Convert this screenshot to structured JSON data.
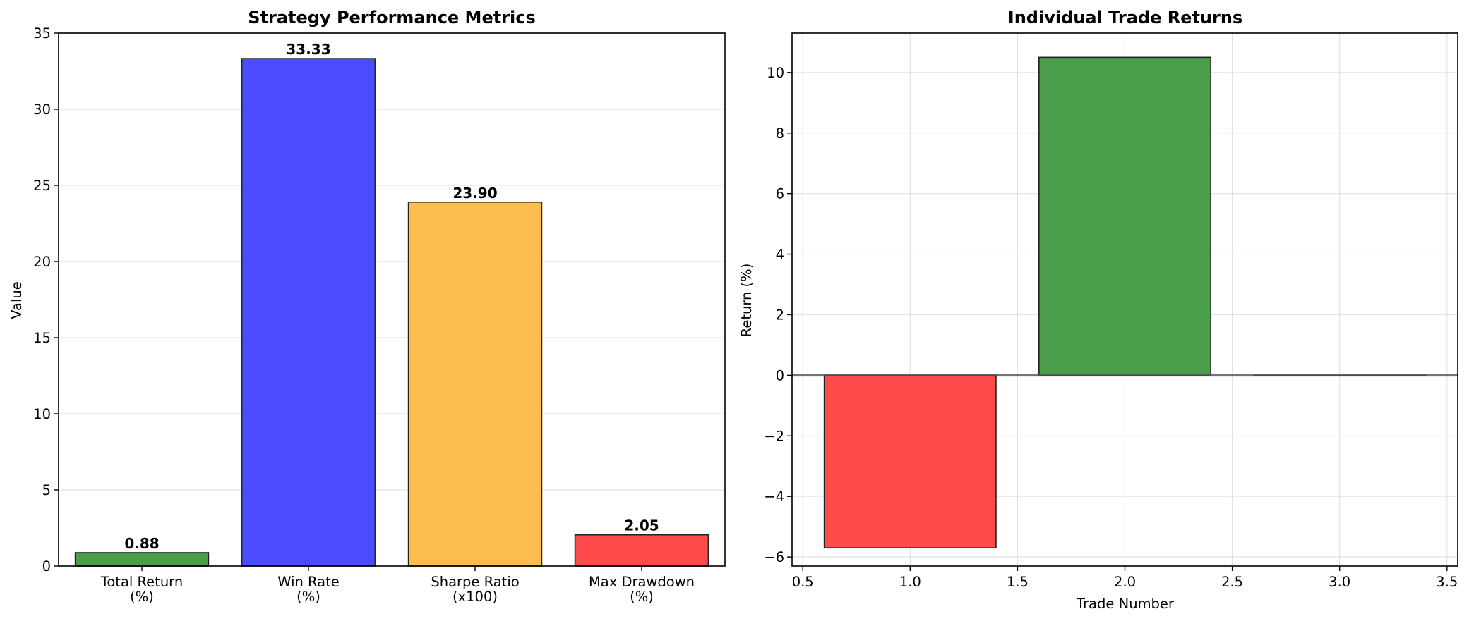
{
  "chart_data": [
    {
      "type": "bar",
      "title": "Strategy Performance Metrics",
      "xlabel": "",
      "ylabel": "Value",
      "categories": [
        [
          "Total Return",
          "(%)"
        ],
        [
          "Win Rate",
          "(%)"
        ],
        [
          "Sharpe Ratio",
          "(x100)"
        ],
        [
          "Max Drawdown",
          "(%)"
        ]
      ],
      "values": [
        0.88,
        33.33,
        23.9,
        2.05
      ],
      "data_labels": [
        "0.88",
        "33.33",
        "23.90",
        "2.05"
      ],
      "colors": [
        "#4a9e4a",
        "#4b4bff",
        "#fdbd4f",
        "#ff4b4b"
      ],
      "ylim": [
        0,
        35
      ],
      "yticks": [
        0,
        5,
        10,
        15,
        20,
        25,
        30,
        35
      ],
      "grid": "y"
    },
    {
      "type": "bar",
      "title": "Individual Trade Returns",
      "xlabel": "Trade Number",
      "ylabel": "Return (%)",
      "x": [
        1,
        2,
        3
      ],
      "values": [
        -5.7,
        10.5,
        0.0
      ],
      "bar_width": 0.8,
      "colors": [
        "#ff4b4b",
        "#4a9e4a",
        "#4a9e4a"
      ],
      "xlim": [
        0.45,
        3.55
      ],
      "ylim": [
        -6.3,
        11.3
      ],
      "xticks": [
        0.5,
        1.0,
        1.5,
        2.0,
        2.5,
        3.0,
        3.5
      ],
      "xtick_labels": [
        "0.5",
        "1.0",
        "1.5",
        "2.0",
        "2.5",
        "3.0",
        "3.5"
      ],
      "yticks": [
        -6,
        -4,
        -2,
        0,
        2,
        4,
        6,
        8,
        10
      ],
      "ytick_labels": [
        "−6",
        "−4",
        "−2",
        "0",
        "2",
        "4",
        "6",
        "8",
        "10"
      ],
      "zero_line": true,
      "grid": "both"
    }
  ]
}
